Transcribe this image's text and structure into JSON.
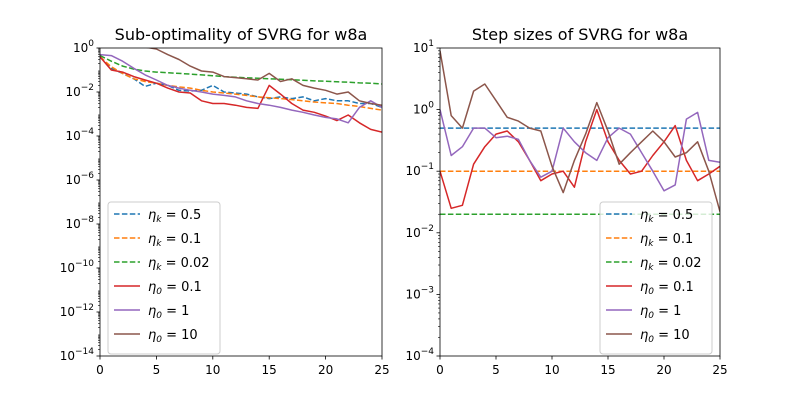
{
  "chart_data": [
    {
      "type": "line",
      "title": "Sub-optimality of SVRG for w8a",
      "xlabel": "",
      "ylabel": "",
      "xlim": [
        0,
        25
      ],
      "ylim": [
        1e-14,
        1
      ],
      "yscale": "log",
      "legend_position": "lower-left",
      "x_ticks": [
        0,
        5,
        10,
        15,
        20,
        25
      ],
      "y_ticks": [
        -14,
        -12,
        -10,
        -8,
        -6,
        -4,
        -2,
        0
      ],
      "x": [
        0,
        1,
        2,
        3,
        4,
        5,
        6,
        7,
        8,
        9,
        10,
        11,
        12,
        13,
        14,
        15,
        16,
        17,
        18,
        19,
        20,
        21,
        22,
        23,
        24,
        25
      ],
      "series": [
        {
          "name": "eta_k = 0.5",
          "legend_label": {
            "sym": "η",
            "sub": "k",
            "val": "= 0.5"
          },
          "color": "#1f77b4",
          "dash": true,
          "values": [
            0.4,
            0.12,
            0.07,
            0.04,
            0.018,
            0.025,
            0.02,
            0.012,
            0.011,
            0.012,
            0.02,
            0.01,
            0.009,
            0.008,
            0.006,
            0.005,
            0.006,
            0.005,
            0.006,
            0.004,
            0.005,
            0.004,
            0.004,
            0.003,
            0.003,
            0.002
          ]
        },
        {
          "name": "eta_k = 0.1",
          "legend_label": {
            "sym": "η",
            "sub": "k",
            "val": "= 0.1"
          },
          "color": "#ff7f0e",
          "dash": true,
          "values": [
            0.4,
            0.14,
            0.07,
            0.04,
            0.03,
            0.025,
            0.02,
            0.017,
            0.015,
            0.012,
            0.01,
            0.009,
            0.008,
            0.007,
            0.006,
            0.0055,
            0.005,
            0.0045,
            0.004,
            0.0035,
            0.0032,
            0.003,
            0.0025,
            0.0022,
            0.0018,
            0.0015
          ]
        },
        {
          "name": "eta_k = 0.02",
          "legend_label": {
            "sym": "η",
            "sub": "k",
            "val": "= 0.02"
          },
          "color": "#2ca02c",
          "dash": true,
          "values": [
            0.45,
            0.25,
            0.15,
            0.11,
            0.09,
            0.08,
            0.075,
            0.07,
            0.065,
            0.06,
            0.055,
            0.05,
            0.047,
            0.044,
            0.042,
            0.04,
            0.038,
            0.036,
            0.034,
            0.032,
            0.031,
            0.029,
            0.028,
            0.026,
            0.025,
            0.023
          ]
        },
        {
          "name": "eta_0 = 0.1",
          "legend_label": {
            "sym": "η",
            "sub": "0",
            "val": "= 0.1"
          },
          "color": "#d62728",
          "dash": false,
          "values": [
            0.4,
            0.1,
            0.08,
            0.05,
            0.035,
            0.025,
            0.015,
            0.01,
            0.009,
            0.004,
            0.003,
            0.003,
            0.0025,
            0.002,
            0.0018,
            0.02,
            0.008,
            0.003,
            0.0015,
            0.0012,
            0.0008,
            0.0005,
            0.0009,
            0.0004,
            0.0002,
            0.00015
          ]
        },
        {
          "name": "eta_0 = 1",
          "legend_label": {
            "sym": "η",
            "sub": "0",
            "val": "= 1"
          },
          "color": "#9467bd",
          "dash": false,
          "values": [
            0.5,
            0.45,
            0.25,
            0.12,
            0.06,
            0.035,
            0.02,
            0.015,
            0.012,
            0.01,
            0.008,
            0.007,
            0.006,
            0.004,
            0.003,
            0.0025,
            0.002,
            0.0015,
            0.0012,
            0.0009,
            0.0007,
            0.0006,
            0.0004,
            0.002,
            0.004,
            0.002
          ]
        },
        {
          "name": "eta_0 = 10",
          "legend_label": {
            "sym": "η",
            "sub": "0",
            "val": "= 10"
          },
          "color": "#8c564b",
          "dash": false,
          "values": [
            1.2,
            1.2,
            1.2,
            1.3,
            1.1,
            0.9,
            0.5,
            0.3,
            0.15,
            0.09,
            0.08,
            0.05,
            0.045,
            0.04,
            0.035,
            0.07,
            0.03,
            0.04,
            0.02,
            0.015,
            0.012,
            0.008,
            0.01,
            0.004,
            0.003,
            0.0025
          ]
        }
      ]
    },
    {
      "type": "line",
      "title": "Step sizes of SVRG for w8a",
      "xlabel": "",
      "ylabel": "",
      "xlim": [
        0,
        25
      ],
      "ylim": [
        0.0001,
        10
      ],
      "yscale": "log",
      "legend_position": "lower-right",
      "x_ticks": [
        0,
        5,
        10,
        15,
        20,
        25
      ],
      "y_ticks": [
        -4,
        -3,
        -2,
        -1,
        0,
        1
      ],
      "x": [
        0,
        1,
        2,
        3,
        4,
        5,
        6,
        7,
        8,
        9,
        10,
        11,
        12,
        13,
        14,
        15,
        16,
        17,
        18,
        19,
        20,
        21,
        22,
        23,
        24,
        25
      ],
      "series": [
        {
          "name": "eta_k = 0.5",
          "legend_label": {
            "sym": "η",
            "sub": "k",
            "val": "= 0.5"
          },
          "color": "#1f77b4",
          "dash": true,
          "values": [
            0.5,
            0.5,
            0.5,
            0.5,
            0.5,
            0.5,
            0.5,
            0.5,
            0.5,
            0.5,
            0.5,
            0.5,
            0.5,
            0.5,
            0.5,
            0.5,
            0.5,
            0.5,
            0.5,
            0.5,
            0.5,
            0.5,
            0.5,
            0.5,
            0.5,
            0.5
          ]
        },
        {
          "name": "eta_k = 0.1",
          "legend_label": {
            "sym": "η",
            "sub": "k",
            "val": "= 0.1"
          },
          "color": "#ff7f0e",
          "dash": true,
          "values": [
            0.1,
            0.1,
            0.1,
            0.1,
            0.1,
            0.1,
            0.1,
            0.1,
            0.1,
            0.1,
            0.1,
            0.1,
            0.1,
            0.1,
            0.1,
            0.1,
            0.1,
            0.1,
            0.1,
            0.1,
            0.1,
            0.1,
            0.1,
            0.1,
            0.1,
            0.1
          ]
        },
        {
          "name": "eta_k = 0.02",
          "legend_label": {
            "sym": "η",
            "sub": "k",
            "val": "= 0.02"
          },
          "color": "#2ca02c",
          "dash": true,
          "values": [
            0.02,
            0.02,
            0.02,
            0.02,
            0.02,
            0.02,
            0.02,
            0.02,
            0.02,
            0.02,
            0.02,
            0.02,
            0.02,
            0.02,
            0.02,
            0.02,
            0.02,
            0.02,
            0.02,
            0.02,
            0.02,
            0.02,
            0.02,
            0.02,
            0.02,
            0.02
          ]
        },
        {
          "name": "eta_0 = 0.1",
          "legend_label": {
            "sym": "η",
            "sub": "0",
            "val": "= 0.1"
          },
          "color": "#d62728",
          "dash": false,
          "values": [
            0.1,
            0.025,
            0.028,
            0.13,
            0.25,
            0.4,
            0.45,
            0.3,
            0.15,
            0.07,
            0.09,
            0.1,
            0.055,
            0.3,
            1.0,
            0.3,
            0.15,
            0.09,
            0.1,
            0.18,
            0.3,
            0.55,
            0.15,
            0.07,
            0.09,
            0.12
          ]
        },
        {
          "name": "eta_0 = 1",
          "legend_label": {
            "sym": "η",
            "sub": "0",
            "val": "= 1"
          },
          "color": "#9467bd",
          "dash": false,
          "values": [
            1.0,
            0.18,
            0.25,
            0.5,
            0.5,
            0.35,
            0.37,
            0.33,
            0.15,
            0.08,
            0.1,
            0.5,
            0.3,
            0.2,
            0.15,
            0.35,
            0.5,
            0.4,
            0.2,
            0.1,
            0.048,
            0.06,
            0.7,
            0.9,
            0.15,
            0.14
          ]
        },
        {
          "name": "eta_0 = 10",
          "legend_label": {
            "sym": "η",
            "sub": "0",
            "val": "= 10"
          },
          "color": "#8c564b",
          "dash": false,
          "values": [
            9.0,
            0.8,
            0.5,
            2.0,
            2.6,
            1.4,
            0.75,
            0.65,
            0.5,
            0.45,
            0.12,
            0.045,
            0.15,
            0.4,
            1.3,
            0.45,
            0.13,
            0.2,
            0.3,
            0.45,
            0.3,
            0.17,
            0.2,
            0.3,
            0.1,
            0.022
          ]
        }
      ]
    }
  ]
}
